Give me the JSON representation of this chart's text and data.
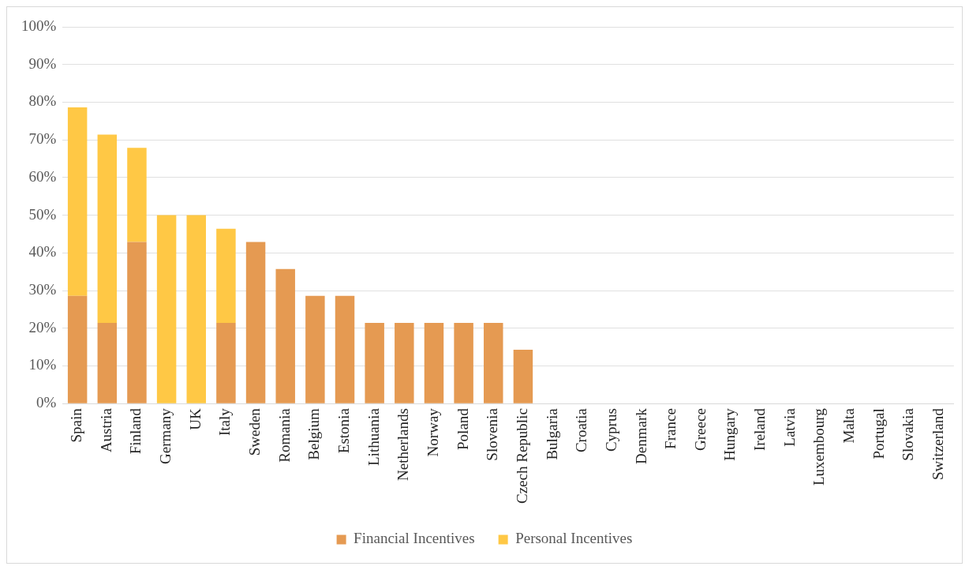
{
  "chart_data": {
    "type": "bar",
    "stacked": true,
    "categories": [
      "Spain",
      "Austria",
      "Finland",
      "Germany",
      "UK",
      "Italy",
      "Sweden",
      "Romania",
      "Belgium",
      "Estonia",
      "Lithuania",
      "Netherlands",
      "Norway",
      "Poland",
      "Slovenia",
      "Czech Republic",
      "Bulgaria",
      "Croatia",
      "Cyprus",
      "Denmark",
      "France",
      "Greece",
      "Hungary",
      "Ireland",
      "Latvia",
      "Luxembourg",
      "Malta",
      "Portugal",
      "Slovakia",
      "Switzerland"
    ],
    "series": [
      {
        "name": "Financial Incentives",
        "color": "#e59a52",
        "values": [
          28.6,
          21.4,
          42.9,
          0,
          0,
          21.4,
          42.9,
          35.7,
          28.6,
          28.6,
          21.4,
          21.4,
          21.4,
          21.4,
          21.4,
          14.3,
          0,
          0,
          0,
          0,
          0,
          0,
          0,
          0,
          0,
          0,
          0,
          0,
          0,
          0
        ]
      },
      {
        "name": "Personal Incentives",
        "color": "#ffc845",
        "values": [
          50,
          50,
          25,
          50,
          50,
          25,
          0,
          0,
          0,
          0,
          0,
          0,
          0,
          0,
          0,
          0,
          0,
          0,
          0,
          0,
          0,
          0,
          0,
          0,
          0,
          0,
          0,
          0,
          0,
          0
        ]
      }
    ],
    "ylim": [
      0,
      100
    ],
    "yticks": [
      {
        "value": 0,
        "label": "0%"
      },
      {
        "value": 10,
        "label": "10%"
      },
      {
        "value": 20,
        "label": "20%"
      },
      {
        "value": 30,
        "label": "30%"
      },
      {
        "value": 40,
        "label": "40%"
      },
      {
        "value": 50,
        "label": "50%"
      },
      {
        "value": 60,
        "label": "60%"
      },
      {
        "value": 70,
        "label": "70%"
      },
      {
        "value": 80,
        "label": "80%"
      },
      {
        "value": 90,
        "label": "90%"
      },
      {
        "value": 100,
        "label": "100%"
      }
    ],
    "grid": "y",
    "legend": "bottom"
  }
}
